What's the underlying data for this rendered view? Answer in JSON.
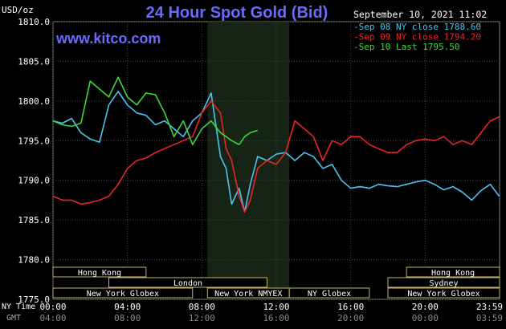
{
  "chart_data": {
    "type": "line",
    "title": "24 Hour Spot Gold (Bid)",
    "ylabel": "USD/oz",
    "website": "www.kitco.com",
    "timestamp": "September 10, 2021 11:02",
    "ylim": [
      1775,
      1810
    ],
    "y_ticks": [
      "1810.0",
      "1805.0",
      "1800.0",
      "1795.0",
      "1790.0",
      "1785.0",
      "1780.0",
      "1775.0"
    ],
    "x_row_label_ny": "NY Time",
    "x_row_label_gmt": "GMT",
    "x_ticks_ny": [
      "00:00",
      "04:00",
      "08:00",
      "12:00",
      "16:00",
      "20:00",
      "23:59"
    ],
    "x_ticks_gmt": [
      "04:00",
      "08:00",
      "12:00",
      "16:00",
      "20:00",
      "00:00",
      "03:59"
    ],
    "x_tick_hours": [
      0,
      4,
      8,
      12,
      16,
      20,
      23.98
    ],
    "shaded_hours": [
      8.3,
      12.7
    ],
    "grid": true,
    "legend_position": "top-right",
    "sessions": [
      {
        "name": "Hong Kong",
        "start": 0,
        "end": 5
      },
      {
        "name": "London",
        "start": 3,
        "end": 11.5
      },
      {
        "name": "New York Globex",
        "start": 0,
        "end": 7.5
      },
      {
        "name": "New York NMYEX",
        "start": 8.3,
        "end": 12.7
      },
      {
        "name": "NY Globex",
        "start": 12.7,
        "end": 17
      },
      {
        "name": "Hong Kong",
        "start": 19,
        "end": 24
      },
      {
        "name": "Sydney",
        "start": 18,
        "end": 24
      },
      {
        "name": "New York Globex",
        "start": 18,
        "end": 24
      }
    ],
    "series": [
      {
        "name": "Sep 08 NY close 1788.60",
        "color": "#4cc3f0",
        "x": [
          0,
          0.5,
          1,
          1.5,
          2,
          2.5,
          3,
          3.5,
          4,
          4.5,
          5,
          5.5,
          6,
          6.5,
          7,
          7.5,
          8,
          8.5,
          9,
          9.3,
          9.6,
          10,
          10.3,
          10.6,
          11,
          11.5,
          12,
          12.5,
          13,
          13.5,
          14,
          14.5,
          15,
          15.5,
          16,
          16.5,
          17,
          17.5,
          18,
          18.5,
          19,
          19.5,
          20,
          20.5,
          21,
          21.5,
          22,
          22.5,
          23,
          23.5,
          23.98
        ],
        "values": [
          1797.5,
          1797.2,
          1797.8,
          1796,
          1795.2,
          1794.8,
          1799.5,
          1801.2,
          1799.5,
          1798.5,
          1798.2,
          1797,
          1797.5,
          1796.5,
          1795.5,
          1797.5,
          1798.5,
          1801,
          1793,
          1791.5,
          1787,
          1789,
          1786,
          1789.5,
          1793,
          1792.5,
          1793.3,
          1793.5,
          1792.5,
          1793.5,
          1793,
          1791.5,
          1792,
          1790,
          1789,
          1789.2,
          1789,
          1789.5,
          1789.3,
          1789.2,
          1789.5,
          1789.8,
          1790,
          1789.5,
          1788.8,
          1789.2,
          1788.5,
          1787.5,
          1788.7,
          1789.5,
          1788
        ]
      },
      {
        "name": "Sep 09 NY close 1794.20",
        "color": "#e8242a",
        "x": [
          0,
          0.5,
          1,
          1.5,
          2,
          2.5,
          3,
          3.5,
          4,
          4.5,
          5,
          5.5,
          6,
          6.5,
          7,
          7.5,
          8,
          8.5,
          9,
          9.3,
          9.6,
          10,
          10.3,
          10.6,
          11,
          11.5,
          12,
          12.5,
          13,
          13.5,
          14,
          14.5,
          15,
          15.5,
          16,
          16.5,
          17,
          17.5,
          18,
          18.5,
          19,
          19.5,
          20,
          20.5,
          21,
          21.5,
          22,
          22.5,
          23,
          23.5,
          23.98
        ],
        "values": [
          1788,
          1787.5,
          1787.5,
          1787,
          1787.2,
          1787.5,
          1788,
          1789.5,
          1791.5,
          1792.5,
          1792.8,
          1793.5,
          1794,
          1794.5,
          1795,
          1795.5,
          1798.5,
          1800,
          1798.5,
          1794,
          1792.5,
          1788,
          1786,
          1787.5,
          1791.5,
          1792.5,
          1792,
          1793.5,
          1797.5,
          1796.5,
          1795.5,
          1792.5,
          1795,
          1794.5,
          1795.5,
          1795.5,
          1794.5,
          1794,
          1793.5,
          1793.5,
          1794.5,
          1795,
          1795.2,
          1795,
          1795.5,
          1794.5,
          1795,
          1794.5,
          1796,
          1797.5,
          1798
        ]
      },
      {
        "name": "Sep 10 Last 1795.50",
        "color": "#39d93a",
        "x": [
          0,
          0.5,
          1,
          1.5,
          2,
          2.5,
          3,
          3.5,
          4,
          4.5,
          5,
          5.5,
          6,
          6.5,
          7,
          7.5,
          8,
          8.5,
          9,
          9.3,
          9.6,
          10,
          10.3,
          10.6,
          11
        ],
        "values": [
          1797.5,
          1797,
          1796.8,
          1797.2,
          1802.5,
          1801.5,
          1800.5,
          1803,
          1800.5,
          1799.5,
          1801,
          1800.8,
          1798.5,
          1795.5,
          1797.5,
          1794.5,
          1796.5,
          1797.5,
          1796,
          1795.5,
          1795,
          1794.5,
          1795.5,
          1796,
          1796.3
        ]
      }
    ]
  }
}
